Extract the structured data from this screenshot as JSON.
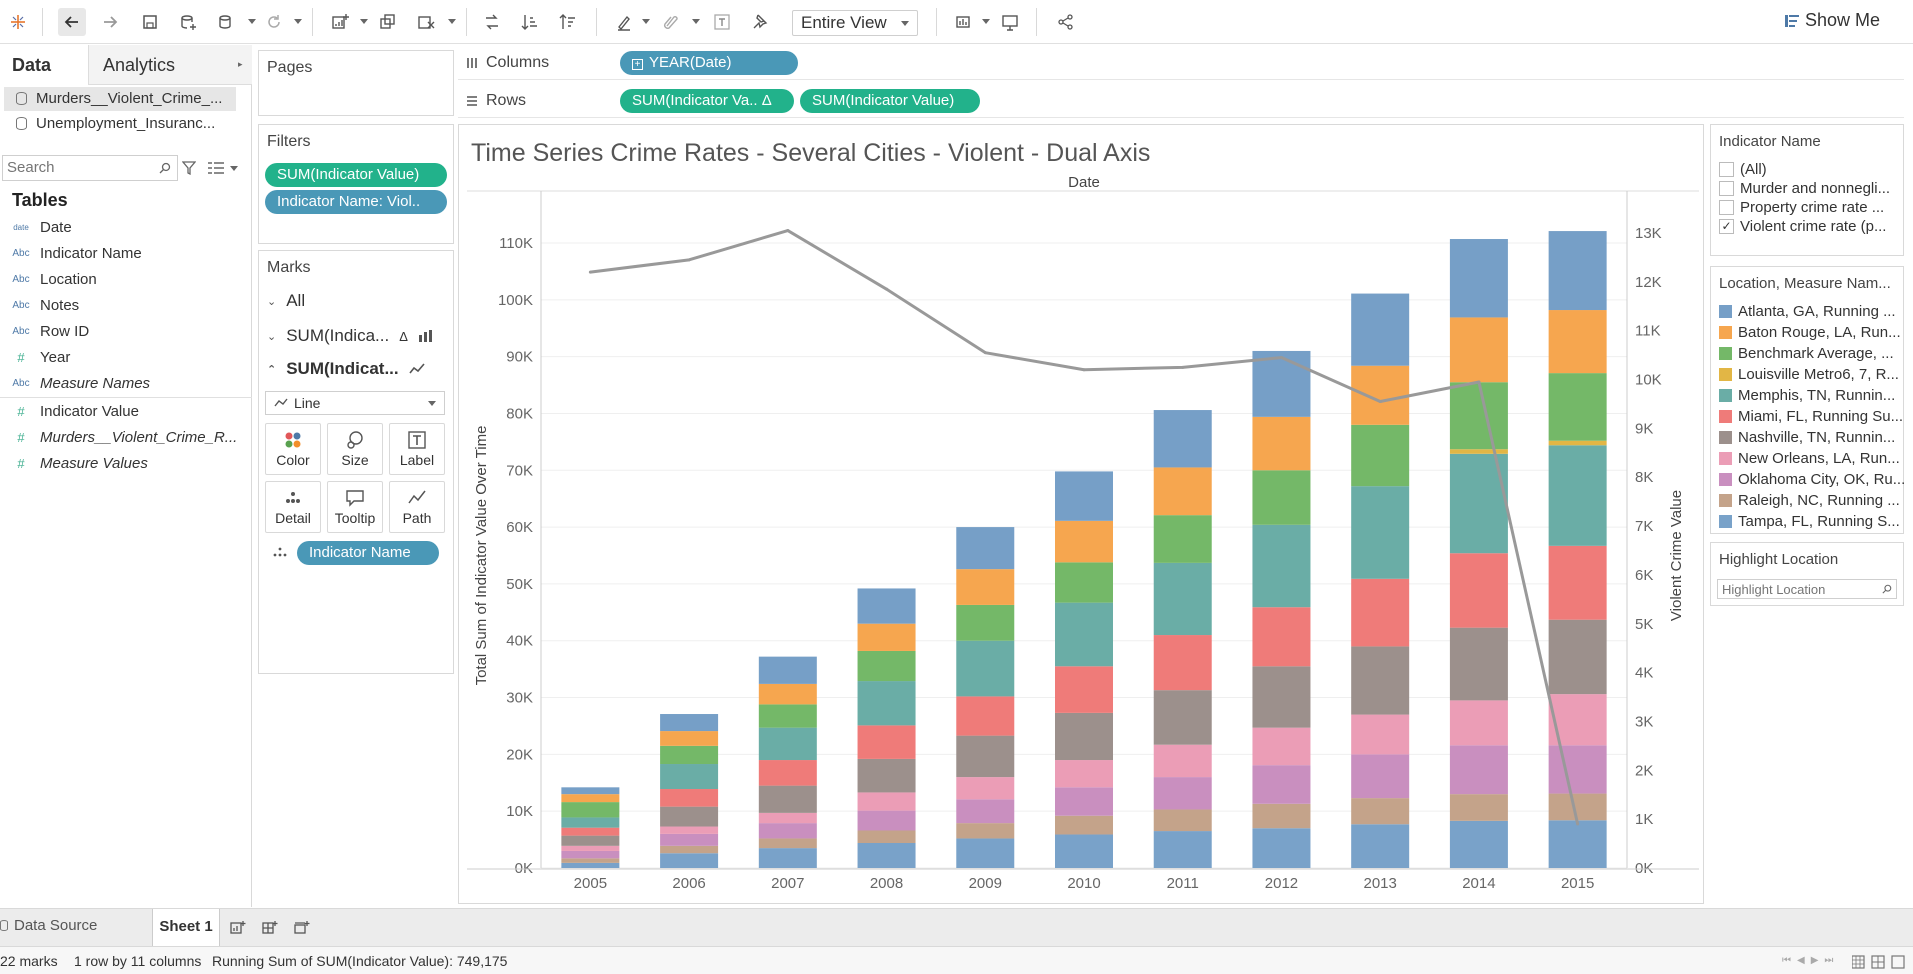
{
  "toolbar": {
    "view_mode": "Entire View",
    "show_me_label": "Show Me",
    "icons": [
      "tableau-logo-icon",
      "undo-icon",
      "redo-icon",
      "save-icon",
      "new-datasource-icon",
      "pause-updates-icon",
      "refresh-icon",
      "new-worksheet-icon",
      "duplicate-sheet-icon",
      "clear-sheet-icon",
      "swap-axes-icon",
      "sort-ascending-icon",
      "sort-descending-icon",
      "highlight-icon",
      "group-icon",
      "show-labels-icon",
      "pin-icon",
      "fit-icon",
      "presentation-icon",
      "share-icon"
    ]
  },
  "data_pane": {
    "tabs": [
      "Data",
      "Analytics"
    ],
    "datasources": [
      "Murders__Violent_Crime_...",
      "Unemployment_Insuranc..."
    ],
    "search_placeholder": "Search",
    "tables_heading": "Tables",
    "fields": [
      {
        "type": "date",
        "label": "Date",
        "italic": false
      },
      {
        "type": "Abc",
        "label": "Indicator Name",
        "italic": false
      },
      {
        "type": "Abc",
        "label": "Location",
        "italic": false
      },
      {
        "type": "Abc",
        "label": "Notes",
        "italic": false
      },
      {
        "type": "Abc",
        "label": "Row ID",
        "italic": false
      },
      {
        "type": "#",
        "label": "Year",
        "italic": false
      },
      {
        "type": "Abc",
        "label": "Measure Names",
        "italic": true
      },
      {
        "type": "#",
        "label": "Indicator Value",
        "italic": false
      },
      {
        "type": "#",
        "label": "Murders__Violent_Crime_R...",
        "italic": true
      },
      {
        "type": "#",
        "label": "Measure Values",
        "italic": true
      }
    ]
  },
  "pages": {
    "title": "Pages"
  },
  "filters": {
    "title": "Filters",
    "pills": [
      {
        "label": "SUM(Indicator Value)",
        "color": "#22b28b"
      },
      {
        "label": "Indicator Name: Viol..",
        "color": "#4a98b7"
      }
    ]
  },
  "marks": {
    "title": "Marks",
    "sections": [
      "All",
      "SUM(Indica...",
      "SUM(Indicat..."
    ],
    "delta": "Δ",
    "mark_type": "Line",
    "buttons": [
      "Color",
      "Size",
      "Label",
      "Detail",
      "Tooltip",
      "Path"
    ],
    "detail_pill": "Indicator Name"
  },
  "shelves": {
    "columns_label": "Columns",
    "rows_label": "Rows",
    "columns_pill": "YEAR(Date)",
    "rows_pills": [
      "SUM(Indicator Va..  Δ",
      "SUM(Indicator Value)"
    ]
  },
  "chart_data": {
    "type": "bar",
    "title": "Time Series Crime Rates - Several Cities - Violent - Dual Axis",
    "header": "Date",
    "ylabel": "Total Sum of Indicator Value Over Time",
    "y2label": "Violent Crime Value",
    "ylim": [
      0,
      110000
    ],
    "y2lim": [
      0,
      13000
    ],
    "y_ticks": [
      "0K",
      "10K",
      "20K",
      "30K",
      "40K",
      "50K",
      "60K",
      "70K",
      "80K",
      "90K",
      "100K",
      "110K"
    ],
    "y2_ticks": [
      "0K",
      "1K",
      "2K",
      "3K",
      "4K",
      "5K",
      "6K",
      "7K",
      "8K",
      "9K",
      "10K",
      "11K",
      "12K",
      "13K"
    ],
    "categories": [
      "2005",
      "2006",
      "2007",
      "2008",
      "2009",
      "2010",
      "2011",
      "2012",
      "2013",
      "2014",
      "2015"
    ],
    "series": [
      {
        "name": "Tampa, FL, Running S...",
        "color": "#79a2c9",
        "values": [
          900,
          2600,
          3500,
          4400,
          5200,
          5900,
          6500,
          7000,
          7700,
          8300,
          8400
        ]
      },
      {
        "name": "Raleigh, NC, Running ...",
        "color": "#c4a38a",
        "values": [
          800,
          1300,
          1700,
          2200,
          2700,
          3300,
          3800,
          4300,
          4600,
          4700,
          4700
        ]
      },
      {
        "name": "Oklahoma City, OK, Ru...",
        "color": "#c98fbf",
        "values": [
          1300,
          2100,
          2700,
          3500,
          4200,
          5000,
          5700,
          6800,
          7700,
          8600,
          8500
        ]
      },
      {
        "name": "New Orleans, LA, Run...",
        "color": "#eb9db6",
        "values": [
          900,
          1300,
          1800,
          3200,
          3900,
          4800,
          5700,
          6600,
          7000,
          7900,
          9000
        ]
      },
      {
        "name": "Nashville, TN, Runnin...",
        "color": "#9c908c",
        "values": [
          1800,
          3500,
          4800,
          5900,
          7300,
          8300,
          9600,
          10800,
          12000,
          12800,
          13100
        ]
      },
      {
        "name": "Miami, FL, Running Su...",
        "color": "#ef7b79",
        "values": [
          1400,
          3100,
          4500,
          5900,
          6900,
          8200,
          9700,
          10400,
          11900,
          13100,
          13000
        ]
      },
      {
        "name": "Memphis, TN, Runnin...",
        "color": "#6aada6",
        "values": [
          1800,
          4400,
          5700,
          7800,
          9800,
          11200,
          12700,
          14500,
          16300,
          17500,
          17700
        ]
      },
      {
        "name": "Louisville Metro6, 7, R...",
        "color": "#e2b645",
        "values": [
          0,
          0,
          0,
          0,
          0,
          0,
          0,
          0,
          0,
          800,
          800
        ]
      },
      {
        "name": "Benchmark Average, ...",
        "color": "#74b868",
        "values": [
          2700,
          3200,
          4100,
          5300,
          6300,
          7100,
          8400,
          9600,
          10800,
          11800,
          11900
        ]
      },
      {
        "name": "Baton Rouge, LA, Run...",
        "color": "#f6a64f",
        "values": [
          1400,
          2600,
          3600,
          4800,
          6300,
          7300,
          8400,
          9400,
          10400,
          11400,
          11100
        ]
      },
      {
        "name": "Atlanta, GA, Running ...",
        "color": "#769fc7",
        "values": [
          1200,
          3000,
          4800,
          6200,
          7400,
          8700,
          10100,
          11600,
          12700,
          13800,
          13900
        ]
      }
    ],
    "line_series": {
      "name": "Violent crime rate",
      "color": "#999999",
      "values": [
        12200,
        12450,
        13050,
        11850,
        10550,
        10200,
        10250,
        10450,
        9550,
        9950,
        900
      ]
    }
  },
  "legends": {
    "indicator_title": "Indicator Name",
    "indicator_items": [
      {
        "label": "(All)",
        "checked": false,
        "mark": ""
      },
      {
        "label": "Murder and nonnegli...",
        "checked": false,
        "mark": ""
      },
      {
        "label": "Property crime rate ...",
        "checked": false,
        "mark": ""
      },
      {
        "label": "Violent crime rate (p...",
        "checked": true,
        "mark": "✓"
      }
    ],
    "color_title": "Location, Measure Nam...",
    "color_items": [
      {
        "label": "Atlanta, GA, Running ...",
        "color": "#769fc7"
      },
      {
        "label": "Baton Rouge, LA, Run...",
        "color": "#f6a64f"
      },
      {
        "label": "Benchmark Average, ...",
        "color": "#74b868"
      },
      {
        "label": "Louisville Metro6, 7, R...",
        "color": "#e2b645"
      },
      {
        "label": "Memphis, TN, Runnin...",
        "color": "#6aada6"
      },
      {
        "label": "Miami, FL, Running Su...",
        "color": "#ef7b79"
      },
      {
        "label": "Nashville, TN, Runnin...",
        "color": "#9c908c"
      },
      {
        "label": "New Orleans, LA, Run...",
        "color": "#eb9db6"
      },
      {
        "label": "Oklahoma City, OK, Ru...",
        "color": "#c98fbf"
      },
      {
        "label": "Raleigh, NC, Running ...",
        "color": "#c4a38a"
      },
      {
        "label": "Tampa, FL, Running S...",
        "color": "#79a2c9"
      }
    ],
    "highlight_title": "Highlight Location",
    "highlight_placeholder": "Highlight Location"
  },
  "tabs": {
    "data_source": "Data Source",
    "sheet": "Sheet 1"
  },
  "status": {
    "marks": "22 marks",
    "dims": "1 row by 11 columns",
    "running_sum": "Running Sum of SUM(Indicator Value): 749,175"
  }
}
